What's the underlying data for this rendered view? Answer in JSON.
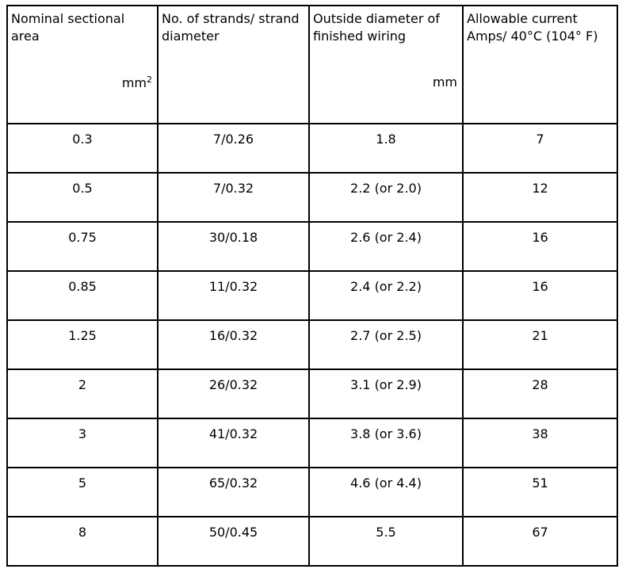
{
  "table": {
    "header": [
      {
        "text": "Nominal sectional area",
        "unit": "mm",
        "unit_sup": "2"
      },
      {
        "text": "No. of strands/ strand diameter"
      },
      {
        "text": "Outside diameter of finished wiring",
        "unit": "mm"
      },
      {
        "text": "Allowable current Amps/ 40°C (104° F)"
      }
    ],
    "rows": [
      [
        "0.3",
        "7/0.26",
        "1.8",
        "7"
      ],
      [
        "0.5",
        "7/0.32",
        "2.2 (or 2.0)",
        "12"
      ],
      [
        "0.75",
        "30/0.18",
        "2.6 (or 2.4)",
        "16"
      ],
      [
        "0.85",
        "11/0.32",
        "2.4 (or 2.2)",
        "16"
      ],
      [
        "1.25",
        "16/0.32",
        "2.7 (or 2.5)",
        "21"
      ],
      [
        "2",
        "26/0.32",
        "3.1 (or 2.9)",
        "28"
      ],
      [
        "3",
        "41/0.32",
        "3.8 (or 3.6)",
        "38"
      ],
      [
        "5",
        "65/0.32",
        "4.6 (or 4.4)",
        "51"
      ],
      [
        "8",
        "50/0.45",
        "5.5",
        "67"
      ]
    ]
  }
}
